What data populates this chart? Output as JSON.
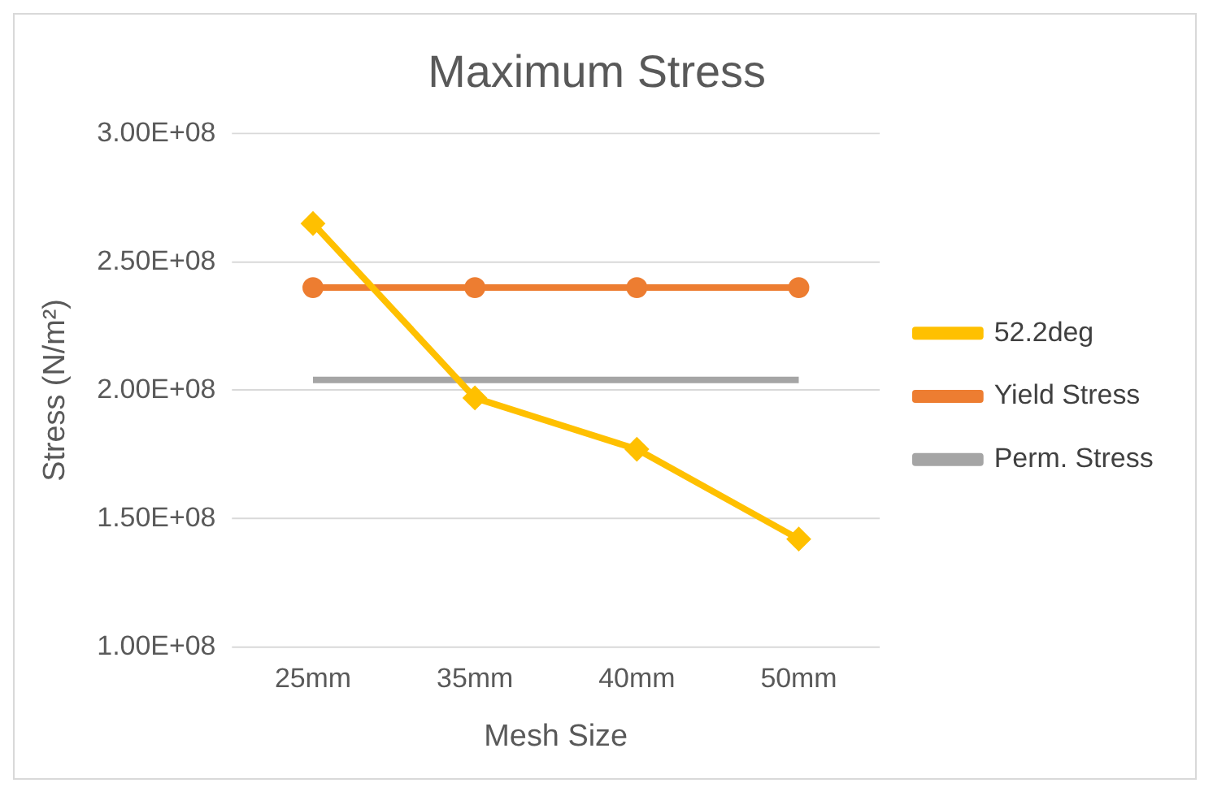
{
  "chart_data": {
    "type": "line",
    "title": "Maximum Stress",
    "xlabel": "Mesh Size",
    "ylabel": "Stress (N/m²)",
    "categories": [
      "25mm",
      "35mm",
      "40mm",
      "50mm"
    ],
    "series": [
      {
        "name": "52.2deg",
        "color": "#ffc000",
        "marker": "diamond",
        "values": [
          265000000,
          197000000,
          177000000,
          142000000
        ]
      },
      {
        "name": "Yield Stress",
        "color": "#ed7d31",
        "marker": "circle",
        "values": [
          240000000,
          240000000,
          240000000,
          240000000
        ]
      },
      {
        "name": "Perm. Stress",
        "color": "#a5a5a5",
        "marker": "none",
        "values": [
          204000000,
          204000000,
          204000000,
          204000000
        ]
      }
    ],
    "ylim": [
      100000000,
      300000000
    ],
    "yticks": [
      {
        "value": 100000000,
        "label": "1.00E+08"
      },
      {
        "value": 150000000,
        "label": "1.50E+08"
      },
      {
        "value": 200000000,
        "label": "2.00E+08"
      },
      {
        "value": 250000000,
        "label": "2.50E+08"
      },
      {
        "value": 300000000,
        "label": "3.00E+08"
      }
    ],
    "grid": "y",
    "legend": "right"
  }
}
